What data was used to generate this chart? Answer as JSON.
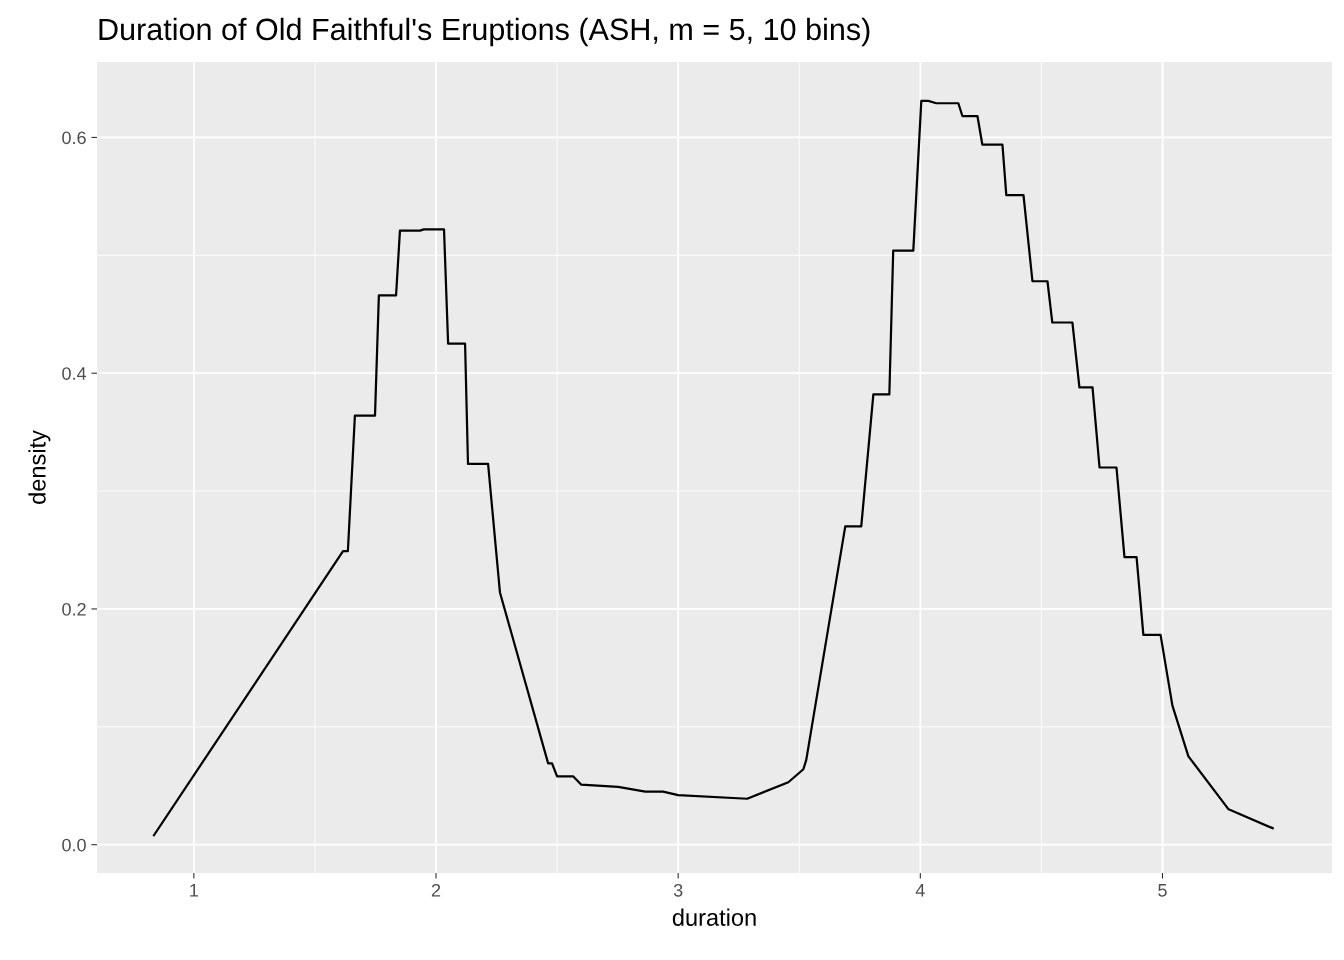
{
  "chart_data": {
    "type": "line",
    "title": "Duration of Old Faithful's Eruptions (ASH, m = 5, 10 bins)",
    "xlabel": "duration",
    "ylabel": "density",
    "xlim": [
      0.6,
      5.7
    ],
    "ylim": [
      -0.024,
      0.664
    ],
    "xticks": [
      1,
      2,
      3,
      4,
      5
    ],
    "yticks": [
      {
        "value": 0,
        "label": "0.0"
      },
      {
        "value": 0.2,
        "label": "0.2"
      },
      {
        "value": 0.4,
        "label": "0.4"
      },
      {
        "value": 0.6,
        "label": "0.6"
      }
    ],
    "grid": true,
    "series": [
      {
        "color": "#000000",
        "x": [
          0.835,
          1.616,
          1.636,
          1.665,
          1.748,
          1.764,
          1.835,
          1.851,
          1.934,
          1.95,
          2.033,
          2.05,
          2.12,
          2.132,
          2.215,
          2.264,
          2.463,
          2.479,
          2.5,
          2.566,
          2.599,
          2.752,
          2.864,
          2.938,
          3.0,
          3.285,
          3.455,
          3.517,
          3.529,
          3.69,
          3.756,
          3.806,
          3.872,
          3.888,
          3.971,
          4.004,
          4.033,
          4.066,
          4.157,
          4.174,
          4.236,
          4.256,
          4.339,
          4.355,
          4.426,
          4.463,
          4.525,
          4.545,
          4.628,
          4.657,
          4.711,
          4.74,
          4.81,
          4.843,
          4.893,
          4.921,
          4.992,
          5.041,
          5.107,
          5.273,
          5.455
        ],
        "values": [
          0.008,
          0.249,
          0.249,
          0.364,
          0.364,
          0.466,
          0.466,
          0.521,
          0.521,
          0.522,
          0.522,
          0.425,
          0.425,
          0.323,
          0.323,
          0.214,
          0.069,
          0.069,
          0.058,
          0.058,
          0.051,
          0.049,
          0.045,
          0.045,
          0.042,
          0.039,
          0.053,
          0.064,
          0.072,
          0.27,
          0.27,
          0.382,
          0.382,
          0.504,
          0.504,
          0.631,
          0.631,
          0.629,
          0.629,
          0.618,
          0.618,
          0.594,
          0.594,
          0.551,
          0.551,
          0.478,
          0.478,
          0.443,
          0.443,
          0.388,
          0.388,
          0.32,
          0.32,
          0.244,
          0.244,
          0.178,
          0.178,
          0.118,
          0.075,
          0.03,
          0.014
        ]
      }
    ]
  }
}
